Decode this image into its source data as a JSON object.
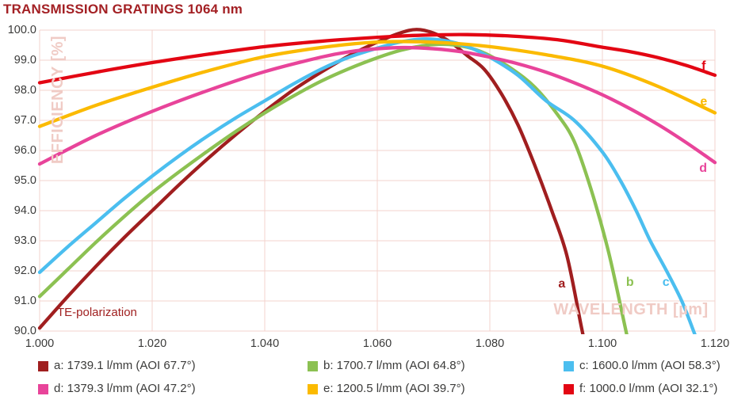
{
  "title": "TRANSMISSION GRATINGS 1064 nm",
  "colors": {
    "title": "#A32024",
    "axis_text": "#3B3B3A",
    "grid": "#F3D3CE",
    "watermark": "#F0CBC5",
    "annotation": "#A02020",
    "background": "#FFFFFF"
  },
  "chart_data": {
    "type": "line",
    "title": "TRANSMISSION GRATINGS 1064 nm",
    "xlabel": "WAVELENGTH [µm]",
    "ylabel": "EFFICIENCY [%]",
    "xlim": [
      1.0,
      1.12
    ],
    "ylim": [
      90.0,
      100.0
    ],
    "x_ticks": [
      "1.000",
      "1.020",
      "1.040",
      "1.060",
      "1.080",
      "1.100",
      "1.120"
    ],
    "y_ticks": [
      "90.0",
      "91.0",
      "92.0",
      "93.0",
      "94.0",
      "95.0",
      "96.0",
      "97.0",
      "98.0",
      "99.0",
      "100.0"
    ],
    "grid": true,
    "annotation": "TE-polarization",
    "legend_position": "bottom",
    "series": [
      {
        "id": "a",
        "label": "a: 1739.1 l/mm (AOI 67.7°)",
        "color": "#A01E1F",
        "curve_label": {
          "text": "a",
          "x": 1.0928,
          "y": 91.6
        },
        "points": [
          [
            1.0,
            90.1
          ],
          [
            1.005,
            91.15
          ],
          [
            1.01,
            92.15
          ],
          [
            1.015,
            93.1
          ],
          [
            1.02,
            94.0
          ],
          [
            1.025,
            94.9
          ],
          [
            1.03,
            95.75
          ],
          [
            1.035,
            96.55
          ],
          [
            1.04,
            97.3
          ],
          [
            1.045,
            98.0
          ],
          [
            1.05,
            98.6
          ],
          [
            1.055,
            99.15
          ],
          [
            1.06,
            99.6
          ],
          [
            1.064,
            99.9
          ],
          [
            1.067,
            100.02
          ],
          [
            1.07,
            99.9
          ],
          [
            1.073,
            99.6
          ],
          [
            1.076,
            99.15
          ],
          [
            1.079,
            98.7
          ],
          [
            1.082,
            97.9
          ],
          [
            1.085,
            96.85
          ],
          [
            1.088,
            95.5
          ],
          [
            1.091,
            94.0
          ],
          [
            1.0937,
            92.5
          ],
          [
            1.0962,
            90.2
          ],
          [
            1.0975,
            89.0
          ]
        ]
      },
      {
        "id": "b",
        "label": "b: 1700.7 l/mm (AOI 64.8°)",
        "color": "#8CC152",
        "curve_label": {
          "text": "b",
          "x": 1.1049,
          "y": 91.66
        },
        "points": [
          [
            1.0,
            91.15
          ],
          [
            1.005,
            92.05
          ],
          [
            1.01,
            92.95
          ],
          [
            1.015,
            93.8
          ],
          [
            1.02,
            94.6
          ],
          [
            1.025,
            95.32
          ],
          [
            1.03,
            96.0
          ],
          [
            1.035,
            96.65
          ],
          [
            1.04,
            97.25
          ],
          [
            1.045,
            97.8
          ],
          [
            1.05,
            98.3
          ],
          [
            1.055,
            98.72
          ],
          [
            1.06,
            99.08
          ],
          [
            1.064,
            99.32
          ],
          [
            1.068,
            99.48
          ],
          [
            1.071,
            99.53
          ],
          [
            1.074,
            99.5
          ],
          [
            1.077,
            99.38
          ],
          [
            1.08,
            99.15
          ],
          [
            1.084,
            98.7
          ],
          [
            1.088,
            98.1
          ],
          [
            1.092,
            97.2
          ],
          [
            1.095,
            96.3
          ],
          [
            1.098,
            94.7
          ],
          [
            1.101,
            92.7
          ],
          [
            1.1035,
            90.6
          ],
          [
            1.105,
            89.3
          ]
        ]
      },
      {
        "id": "c",
        "label": "c: 1600.0 l/mm (AOI 58.3°)",
        "color": "#4BBEEF",
        "curve_label": {
          "text": "c",
          "x": 1.1113,
          "y": 91.66
        },
        "points": [
          [
            1.0,
            91.95
          ],
          [
            1.005,
            92.8
          ],
          [
            1.01,
            93.6
          ],
          [
            1.015,
            94.4
          ],
          [
            1.02,
            95.15
          ],
          [
            1.025,
            95.85
          ],
          [
            1.03,
            96.5
          ],
          [
            1.035,
            97.1
          ],
          [
            1.04,
            97.65
          ],
          [
            1.045,
            98.2
          ],
          [
            1.05,
            98.7
          ],
          [
            1.055,
            99.1
          ],
          [
            1.06,
            99.4
          ],
          [
            1.064,
            99.6
          ],
          [
            1.068,
            99.7
          ],
          [
            1.072,
            99.65
          ],
          [
            1.076,
            99.45
          ],
          [
            1.08,
            99.1
          ],
          [
            1.085,
            98.5
          ],
          [
            1.09,
            97.65
          ],
          [
            1.095,
            97.0
          ],
          [
            1.1,
            95.95
          ],
          [
            1.1032,
            95.0
          ],
          [
            1.106,
            94.0
          ],
          [
            1.1085,
            93.0
          ],
          [
            1.1114,
            92.0
          ],
          [
            1.1141,
            91.0
          ],
          [
            1.1162,
            90.0
          ],
          [
            1.1172,
            89.5
          ]
        ]
      },
      {
        "id": "d",
        "label": "d: 1379.3 l/mm (AOI 47.2°)",
        "color": "#E8449A",
        "curve_label": {
          "text": "d",
          "x": 1.1179,
          "y": 95.45
        },
        "points": [
          [
            1.0,
            95.55
          ],
          [
            1.01,
            96.5
          ],
          [
            1.02,
            97.3
          ],
          [
            1.03,
            98.0
          ],
          [
            1.04,
            98.62
          ],
          [
            1.05,
            99.1
          ],
          [
            1.055,
            99.28
          ],
          [
            1.06,
            99.38
          ],
          [
            1.065,
            99.42
          ],
          [
            1.07,
            99.38
          ],
          [
            1.075,
            99.28
          ],
          [
            1.08,
            99.1
          ],
          [
            1.085,
            98.88
          ],
          [
            1.09,
            98.6
          ],
          [
            1.095,
            98.25
          ],
          [
            1.1,
            97.85
          ],
          [
            1.105,
            97.38
          ],
          [
            1.11,
            96.85
          ],
          [
            1.115,
            96.25
          ],
          [
            1.12,
            95.6
          ]
        ]
      },
      {
        "id": "e",
        "label": "e: 1200.5 l/mm (AOI 39.7°)",
        "color": "#FBBA00",
        "curve_label": {
          "text": "e",
          "x": 1.118,
          "y": 97.66
        },
        "points": [
          [
            1.0,
            96.8
          ],
          [
            1.01,
            97.5
          ],
          [
            1.02,
            98.1
          ],
          [
            1.03,
            98.65
          ],
          [
            1.04,
            99.12
          ],
          [
            1.05,
            99.42
          ],
          [
            1.058,
            99.58
          ],
          [
            1.065,
            99.62
          ],
          [
            1.072,
            99.58
          ],
          [
            1.08,
            99.45
          ],
          [
            1.09,
            99.18
          ],
          [
            1.1,
            98.8
          ],
          [
            1.11,
            98.12
          ],
          [
            1.12,
            97.25
          ]
        ]
      },
      {
        "id": "f",
        "label": "f: 1000.0 l/mm (AOI 32.1°)",
        "color": "#E30613",
        "curve_label": {
          "text": "f",
          "x": 1.118,
          "y": 98.84
        },
        "points": [
          [
            1.0,
            98.25
          ],
          [
            1.01,
            98.6
          ],
          [
            1.02,
            98.92
          ],
          [
            1.03,
            99.2
          ],
          [
            1.04,
            99.45
          ],
          [
            1.05,
            99.63
          ],
          [
            1.06,
            99.76
          ],
          [
            1.068,
            99.83
          ],
          [
            1.076,
            99.85
          ],
          [
            1.084,
            99.8
          ],
          [
            1.092,
            99.68
          ],
          [
            1.1,
            99.43
          ],
          [
            1.105,
            99.28
          ],
          [
            1.11,
            99.08
          ],
          [
            1.115,
            98.82
          ],
          [
            1.12,
            98.5
          ]
        ]
      }
    ]
  }
}
